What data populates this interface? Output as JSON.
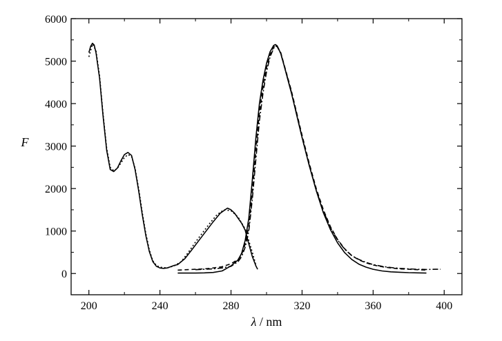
{
  "chart_data": {
    "type": "line",
    "xlabel_symbol": "λ",
    "xlabel_unit": "/ nm",
    "ylabel": "F",
    "xlim": [
      190,
      410
    ],
    "ylim": [
      -500,
      6000
    ],
    "xticks": [
      200,
      240,
      280,
      320,
      360,
      400
    ],
    "yticks": [
      0,
      1000,
      2000,
      3000,
      4000,
      5000,
      6000
    ],
    "grid": false,
    "legend": "none",
    "series": [
      {
        "style": "solid",
        "x": [
          200,
          201,
          202,
          203,
          204,
          206,
          208,
          210,
          212,
          214,
          216,
          218,
          220,
          222,
          224,
          226,
          228,
          230,
          232,
          234,
          236,
          238,
          240,
          242,
          244,
          246,
          248,
          250,
          254,
          258,
          262,
          266,
          270,
          274,
          278,
          280,
          282,
          284,
          286,
          288,
          290,
          292,
          294,
          295
        ],
        "y": [
          5200,
          5350,
          5420,
          5380,
          5200,
          4600,
          3700,
          2900,
          2450,
          2400,
          2480,
          2650,
          2800,
          2850,
          2780,
          2450,
          1950,
          1400,
          900,
          520,
          280,
          170,
          130,
          120,
          130,
          160,
          190,
          210,
          350,
          560,
          780,
          1000,
          1220,
          1420,
          1540,
          1500,
          1420,
          1300,
          1180,
          1020,
          700,
          400,
          180,
          100
        ]
      },
      {
        "style": "dashed",
        "x": [
          250,
          255,
          260,
          265,
          270,
          275,
          280,
          284,
          286,
          288,
          290,
          292,
          294,
          296,
          298,
          300,
          302,
          304,
          305,
          306,
          308,
          310,
          312,
          314,
          316,
          318,
          320,
          324,
          328,
          332,
          336,
          340,
          344,
          348,
          352,
          356,
          360,
          365,
          370,
          375,
          380,
          385,
          390
        ],
        "y": [
          80,
          90,
          100,
          110,
          130,
          160,
          230,
          330,
          450,
          700,
          1100,
          1900,
          2900,
          3800,
          4400,
          4850,
          5150,
          5330,
          5370,
          5350,
          5200,
          4900,
          4600,
          4300,
          3950,
          3600,
          3250,
          2600,
          2000,
          1500,
          1100,
          800,
          580,
          420,
          320,
          250,
          200,
          160,
          130,
          110,
          100,
          90,
          80
        ]
      },
      {
        "style": "dash-dot",
        "x": [
          260,
          265,
          270,
          275,
          280,
          284,
          286,
          288,
          290,
          292,
          294,
          296,
          298,
          300,
          302,
          304,
          305,
          306,
          308,
          310,
          312,
          314,
          316,
          318,
          320,
          324,
          328,
          332,
          336,
          340,
          344,
          348,
          352,
          356,
          360,
          365,
          370,
          375,
          380,
          385,
          390,
          395,
          398
        ],
        "y": [
          90,
          100,
          110,
          130,
          170,
          280,
          400,
          620,
          1000,
          1750,
          2700,
          3600,
          4250,
          4750,
          5100,
          5300,
          5360,
          5340,
          5180,
          4880,
          4580,
          4270,
          3920,
          3570,
          3200,
          2560,
          1960,
          1470,
          1080,
          790,
          570,
          420,
          330,
          260,
          210,
          170,
          140,
          120,
          110,
          100,
          95,
          100,
          100
        ]
      },
      {
        "style": "solid",
        "x": [
          250,
          255,
          260,
          265,
          270,
          275,
          280,
          284,
          286,
          288,
          290,
          292,
          294,
          296,
          298,
          300,
          302,
          304,
          305,
          306,
          308,
          310,
          312,
          314,
          316,
          318,
          320,
          324,
          328,
          332,
          336,
          340,
          344,
          348,
          352,
          356,
          360,
          365,
          370,
          375,
          380,
          385,
          390
        ],
        "y": [
          10,
          10,
          10,
          15,
          25,
          60,
          180,
          320,
          480,
          780,
          1300,
          2200,
          3200,
          4000,
          4550,
          4950,
          5220,
          5370,
          5390,
          5360,
          5180,
          4880,
          4560,
          4250,
          3900,
          3550,
          3200,
          2550,
          1950,
          1430,
          1030,
          720,
          490,
          330,
          220,
          150,
          100,
          60,
          40,
          30,
          20,
          15,
          10
        ]
      },
      {
        "style": "dotted",
        "x": [
          200,
          202,
          204,
          206,
          208,
          210,
          212,
          214,
          216,
          218,
          220,
          222,
          224,
          226,
          228,
          230,
          232,
          234,
          236,
          238,
          240,
          244,
          248,
          252,
          256,
          260,
          264,
          268,
          272,
          276,
          280,
          284,
          288,
          292,
          294
        ],
        "y": [
          5100,
          5400,
          5250,
          4650,
          3750,
          2950,
          2500,
          2420,
          2470,
          2600,
          2730,
          2800,
          2760,
          2480,
          2000,
          1450,
          950,
          560,
          300,
          190,
          150,
          130,
          180,
          280,
          500,
          740,
          960,
          1180,
          1380,
          1500,
          1480,
          1330,
          1050,
          500,
          200
        ]
      }
    ]
  }
}
